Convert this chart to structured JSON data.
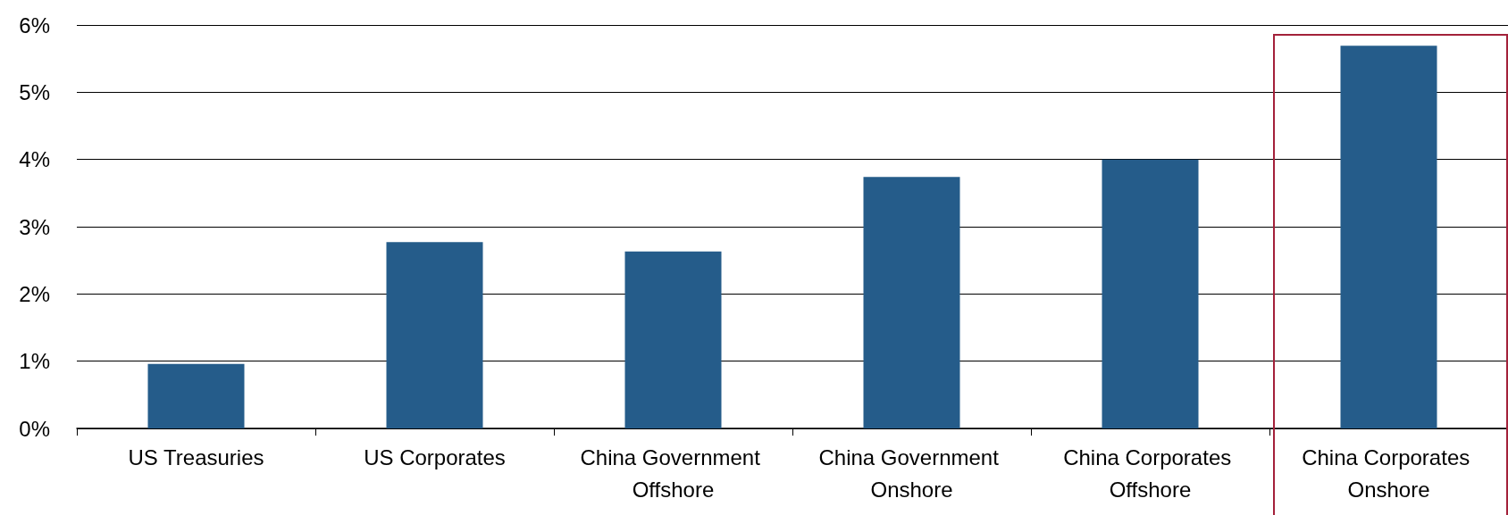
{
  "chart_data": {
    "type": "bar",
    "categories": [
      "US Treasuries",
      "US Corporates",
      "China Government Offshore",
      "China Government Onshore",
      "China Corporates Offshore",
      "China Corporates Onshore"
    ],
    "values": [
      0.96,
      2.77,
      2.63,
      3.74,
      4.0,
      5.69
    ],
    "color": "#255c8a",
    "ylim": [
      0,
      6
    ],
    "yticks": [
      {
        "value": 0,
        "label": "0%"
      },
      {
        "value": 1,
        "label": "1%"
      },
      {
        "value": 2,
        "label": "2%"
      },
      {
        "value": 3,
        "label": "3%"
      },
      {
        "value": 4,
        "label": "4%"
      },
      {
        "value": 5,
        "label": "5%"
      },
      {
        "value": 6,
        "label": "6%"
      }
    ],
    "grid": "y"
  }
}
